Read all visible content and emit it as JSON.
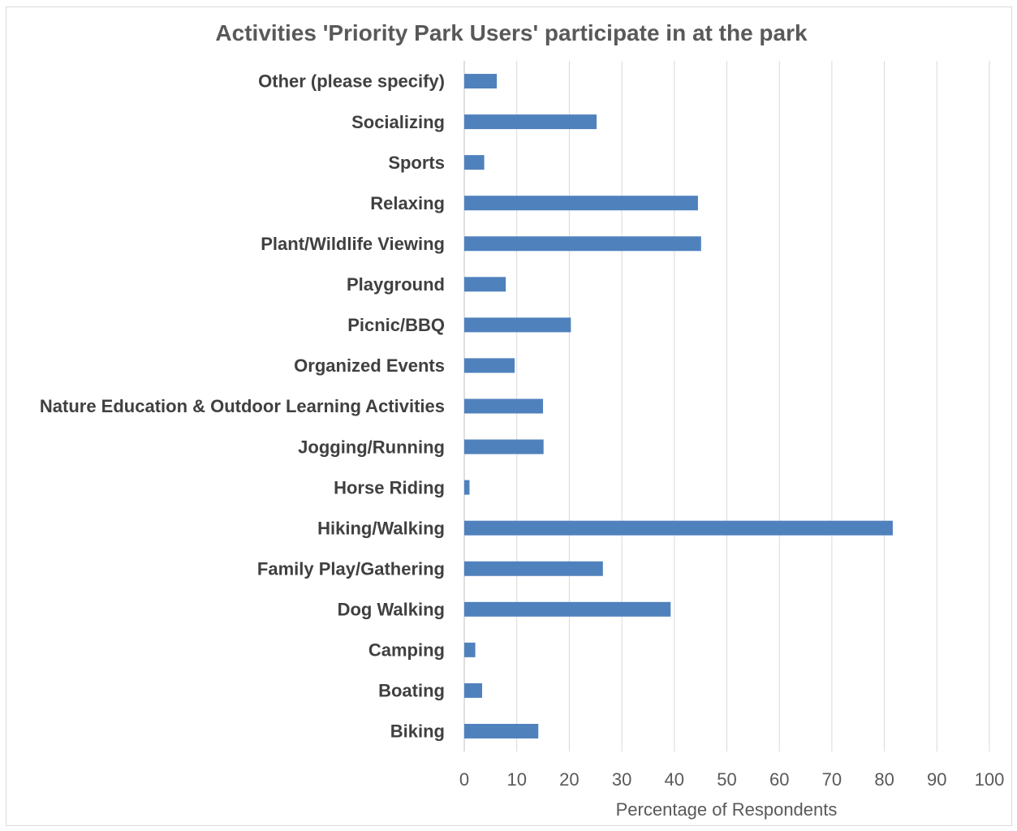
{
  "chart_data": {
    "type": "bar",
    "orientation": "horizontal",
    "title": "Activities 'Priority Park Users' participate in at the park",
    "xlabel": "Percentage of Respondents",
    "ylabel": "",
    "xlim": [
      0,
      100
    ],
    "x_ticks": [
      0,
      10,
      20,
      30,
      40,
      50,
      60,
      70,
      80,
      90,
      100
    ],
    "grid": true,
    "legend": "none",
    "bar_color": "#4f81bd",
    "categories": [
      "Other (please specify)",
      "Socializing",
      "Sports",
      "Relaxing",
      "Plant/Wildlife Viewing",
      "Playground",
      "Picnic/BBQ",
      "Organized Events",
      "Nature Education & Outdoor Learning Activities",
      "Jogging/Running",
      "Horse Riding",
      "Hiking/Walking",
      "Family Play/Gathering",
      "Dog Walking",
      "Camping",
      "Boating",
      "Biking"
    ],
    "values": [
      6.2,
      25.2,
      3.8,
      44.5,
      45.1,
      7.9,
      20.3,
      9.6,
      15.0,
      15.1,
      1.0,
      81.6,
      26.4,
      39.3,
      2.1,
      3.4,
      14.1
    ]
  }
}
